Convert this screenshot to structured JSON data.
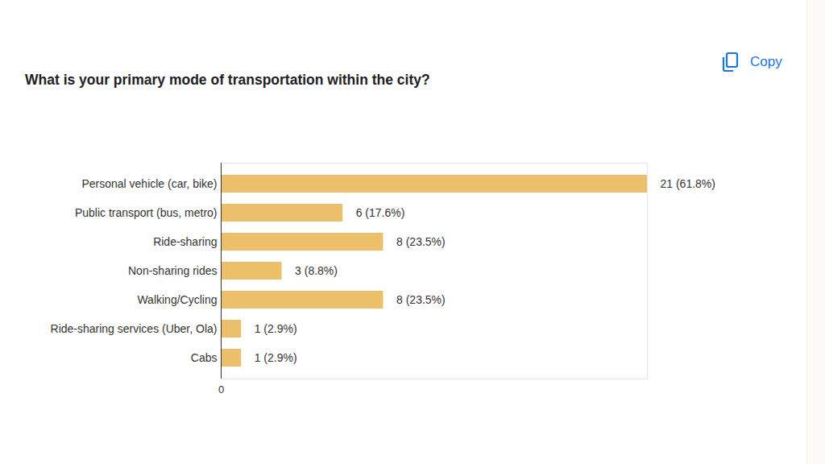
{
  "page": {
    "button": "Copy"
  },
  "chart_data": {
    "type": "bar",
    "orientation": "horizontal",
    "title": "What is your primary mode of transportation within the city?",
    "categories": [
      "Personal vehicle (car, bike)",
      "Public transport (bus, metro)",
      "Ride-sharing",
      "Non-sharing rides",
      "Walking/Cycling",
      "Ride-sharing services (Uber, Ola)",
      "Cabs"
    ],
    "values": [
      21,
      6,
      8,
      3,
      8,
      1,
      1
    ],
    "value_labels": [
      "21 (61.8%)",
      "6 (17.6%)",
      "8 (23.5%)",
      "3 (8.8%)",
      "8 (23.5%)",
      "1 (2.9%)",
      "1 (2.9%)"
    ],
    "data_labels": true,
    "color": "#ecc06b",
    "xlim": [
      0,
      21
    ],
    "xticks": [
      0
    ],
    "grid": false
  }
}
